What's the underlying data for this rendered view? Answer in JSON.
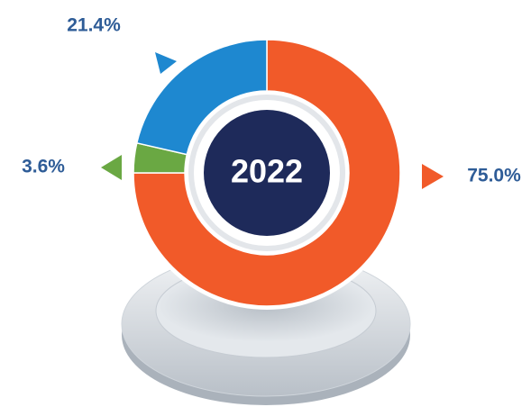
{
  "chart_data": {
    "type": "pie",
    "donut": true,
    "center_label": "2022",
    "values": [
      75.0,
      3.6,
      21.4
    ],
    "value_labels": [
      "75.0%",
      "3.6%",
      "21.4%"
    ],
    "colors": [
      "#f15a29",
      "#6aa843",
      "#1e88d0"
    ]
  }
}
